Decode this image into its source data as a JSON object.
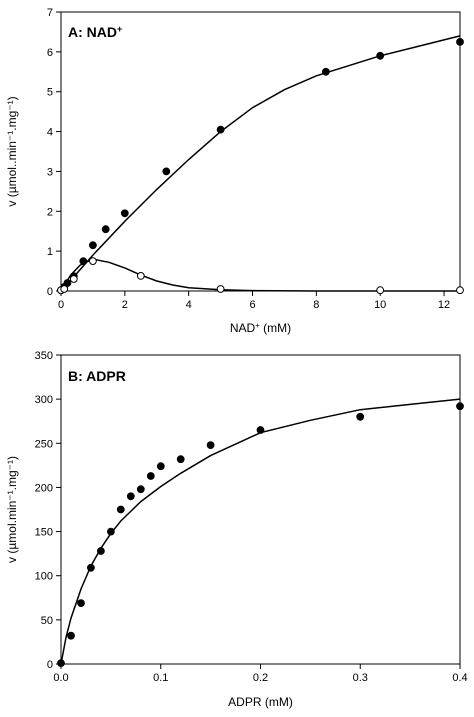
{
  "chart_data": [
    {
      "type": "scatter",
      "panel_label": "A: NAD",
      "panel_label_sup": "+",
      "xlabel": "NAD",
      "xlabel_sup": "+",
      "xlabel_unit": " (mM)",
      "ylabel": "v (µmol..min⁻¹.mg⁻¹)",
      "xlim": [
        0,
        12.5
      ],
      "ylim": [
        0,
        7
      ],
      "xticks": [
        0,
        2,
        4,
        6,
        8,
        10,
        12
      ],
      "yticks": [
        0,
        1,
        2,
        3,
        4,
        5,
        6,
        7
      ],
      "grid": false,
      "series": [
        {
          "marker": "filled",
          "x": [
            0,
            0.1,
            0.2,
            0.4,
            0.7,
            1.0,
            1.4,
            2.0,
            3.3,
            5.0,
            8.3,
            10.0,
            12.5
          ],
          "y": [
            0.02,
            0.1,
            0.2,
            0.37,
            0.75,
            1.15,
            1.55,
            1.95,
            3.0,
            4.05,
            5.5,
            5.9,
            6.25
          ]
        },
        {
          "marker": "open",
          "x": [
            0,
            0.1,
            0.4,
            1.0,
            2.5,
            5.0,
            10.0,
            12.5
          ],
          "y": [
            0.02,
            0.05,
            0.3,
            0.75,
            0.38,
            0.05,
            0.02,
            0.02
          ]
        }
      ],
      "fit_lines": [
        {
          "x": [
            0,
            0.5,
            1,
            2,
            3,
            4,
            5,
            6,
            7,
            8,
            9,
            10,
            11,
            12,
            12.5
          ],
          "y": [
            0,
            0.45,
            0.9,
            1.75,
            2.55,
            3.3,
            4.0,
            4.6,
            5.05,
            5.4,
            5.65,
            5.9,
            6.1,
            6.3,
            6.4
          ]
        },
        {
          "x": [
            0,
            0.3,
            0.6,
            1.0,
            1.5,
            2.0,
            2.5,
            3.0,
            3.5,
            4.0,
            5.0,
            6.0,
            8.0,
            10.0,
            12.5
          ],
          "y": [
            0,
            0.4,
            0.65,
            0.8,
            0.72,
            0.58,
            0.4,
            0.25,
            0.15,
            0.08,
            0.03,
            0.01,
            0.0,
            0.0,
            0.0
          ]
        }
      ]
    },
    {
      "type": "scatter",
      "panel_label": "B: ADPR",
      "xlabel": "ADPR (mM)",
      "ylabel": "v (µmol.min⁻¹.mg⁻¹)",
      "xlim": [
        0,
        0.4
      ],
      "ylim": [
        0,
        350
      ],
      "xticks": [
        0.0,
        0.1,
        0.2,
        0.3,
        0.4
      ],
      "yticks": [
        0,
        50,
        100,
        150,
        200,
        250,
        300,
        350
      ],
      "grid": false,
      "series": [
        {
          "marker": "filled",
          "x": [
            0,
            0.01,
            0.02,
            0.03,
            0.04,
            0.05,
            0.06,
            0.07,
            0.08,
            0.09,
            0.1,
            0.12,
            0.15,
            0.2,
            0.3,
            0.4
          ],
          "y": [
            1,
            32,
            69,
            109,
            128,
            150,
            175,
            190,
            198,
            213,
            224,
            232,
            248,
            265,
            280,
            292
          ]
        }
      ],
      "fit_lines": [
        {
          "x": [
            0,
            0.005,
            0.01,
            0.02,
            0.03,
            0.04,
            0.05,
            0.06,
            0.08,
            0.1,
            0.12,
            0.15,
            0.2,
            0.25,
            0.3,
            0.35,
            0.4
          ],
          "y": [
            0,
            30,
            52,
            85,
            111,
            131,
            148,
            162,
            184,
            201,
            216,
            236,
            262,
            276,
            288,
            294,
            300
          ]
        }
      ]
    }
  ]
}
